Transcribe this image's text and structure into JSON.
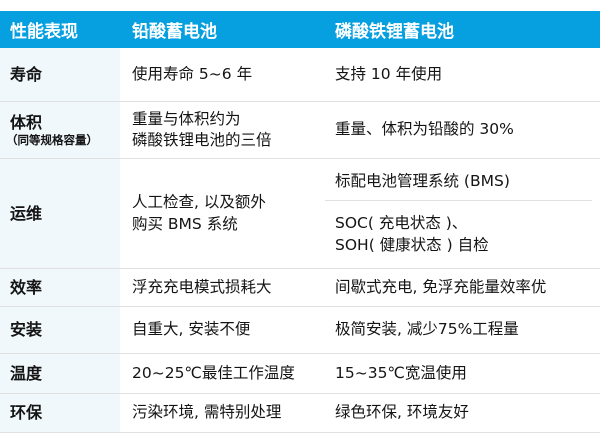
{
  "colors": {
    "header_bg": "#069FE0",
    "header_text": "#FFFFFF",
    "label_column_bg": "#F0F8FC",
    "divider": "#E0E0E0",
    "text": "#141414"
  },
  "header": {
    "performance": "性能表现",
    "lead_acid": "铅酸蓄电池",
    "lfp": "磷酸铁锂蓄电池"
  },
  "rows": [
    {
      "label": "寿命",
      "lead": [
        "使用寿命 5~6 年"
      ],
      "lfp": [
        "支持 10 年使用"
      ]
    },
    {
      "label": "体积",
      "sublabel": "（同等规格容量）",
      "lead": [
        "重量与体积约为",
        "磷酸铁锂电池的三倍"
      ],
      "lfp": [
        "重量、体积为铅酸的 30%"
      ]
    },
    {
      "label": "运维",
      "lead": [
        "人工检查, 以及额外",
        "购买 BMS 系统"
      ],
      "lfp_top": "标配电池管理系统 (BMS)",
      "lfp_bottom": [
        "SOC( 充电状态 )、",
        "SOH( 健康状态 ) 自检"
      ]
    },
    {
      "label": "效率",
      "lead": [
        "浮充充电模式损耗大"
      ],
      "lfp": [
        "间歇式充电, 免浮充能量效率优"
      ]
    },
    {
      "label": "安装",
      "lead": [
        "自重大, 安装不便"
      ],
      "lfp": [
        "极简安装, 减少75%工程量"
      ]
    },
    {
      "label": "温度",
      "lead": [
        "20~25℃最佳工作温度"
      ],
      "lfp": [
        "15~35℃宽温使用"
      ]
    },
    {
      "label": "环保",
      "lead": [
        "污染环境, 需特别处理"
      ],
      "lfp": [
        "绿色环保, 环境友好"
      ]
    }
  ]
}
